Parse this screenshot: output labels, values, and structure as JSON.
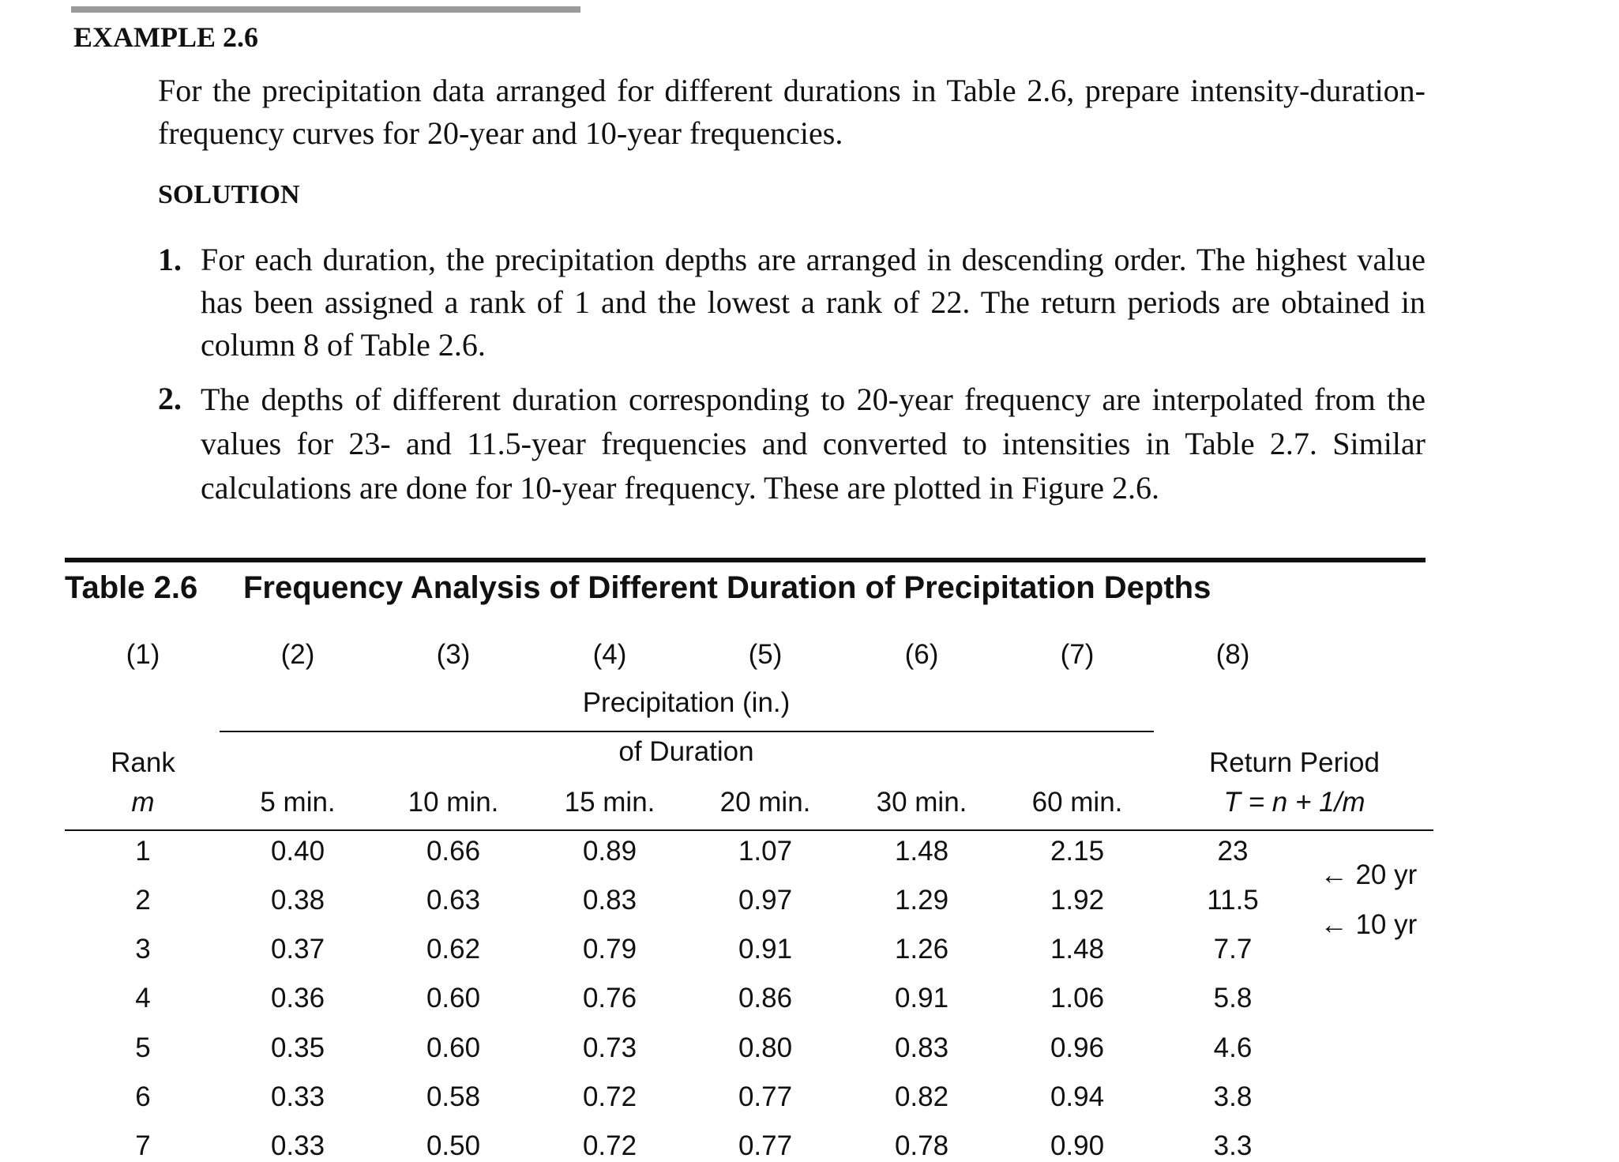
{
  "example": {
    "label": "EXAMPLE 2.6",
    "problem": "For the precipitation data arranged for different durations in Table 2.6, prepare intensity-duration-frequency curves for 20-year and 10-year frequencies.",
    "solution_heading": "SOLUTION",
    "steps": [
      {
        "number": "1.",
        "text": "For each duration, the precipitation depths are arranged in descending order. The highest value has been assigned a rank of 1 and the lowest a rank of 22. The return periods are obtained in column 8 of Table 2.6."
      },
      {
        "number": "2.",
        "text": "The depths of different duration corresponding to 20-year frequency are interpolated from the values for 23- and 11.5-year frequencies and converted to intensities in Table 2.7. Similar calculations are done for 10-year frequency. These are plotted in Figure 2.6."
      }
    ]
  },
  "table": {
    "label": "Table 2.6",
    "title": "Frequency Analysis of Different Duration of Precipitation Depths",
    "column_numbers": [
      "(1)",
      "(2)",
      "(3)",
      "(4)",
      "(5)",
      "(6)",
      "(7)",
      "(8)"
    ],
    "group_header": [
      "Precipitation (in.)",
      "of Duration"
    ],
    "rank_header": [
      "Rank",
      "m"
    ],
    "durations": [
      "5 min.",
      "10 min.",
      "15 min.",
      "20 min.",
      "30 min.",
      "60 min."
    ],
    "return_header": [
      "Return Period",
      "T = n + 1/m"
    ],
    "rows": [
      [
        "1",
        "0.40",
        "0.66",
        "0.89",
        "1.07",
        "1.48",
        "2.15",
        "23"
      ],
      [
        "2",
        "0.38",
        "0.63",
        "0.83",
        "0.97",
        "1.29",
        "1.92",
        "11.5"
      ],
      [
        "3",
        "0.37",
        "0.62",
        "0.79",
        "0.91",
        "1.26",
        "1.48",
        "7.7"
      ],
      [
        "4",
        "0.36",
        "0.60",
        "0.76",
        "0.86",
        "0.91",
        "1.06",
        "5.8"
      ],
      [
        "5",
        "0.35",
        "0.60",
        "0.73",
        "0.80",
        "0.83",
        "0.96",
        "4.6"
      ],
      [
        "6",
        "0.33",
        "0.58",
        "0.72",
        "0.77",
        "0.82",
        "0.94",
        "3.8"
      ],
      [
        "7",
        "0.33",
        "0.50",
        "0.72",
        "0.77",
        "0.78",
        "0.90",
        "3.3"
      ]
    ],
    "annotations": [
      "← 20 yr",
      "← 10 yr"
    ]
  }
}
